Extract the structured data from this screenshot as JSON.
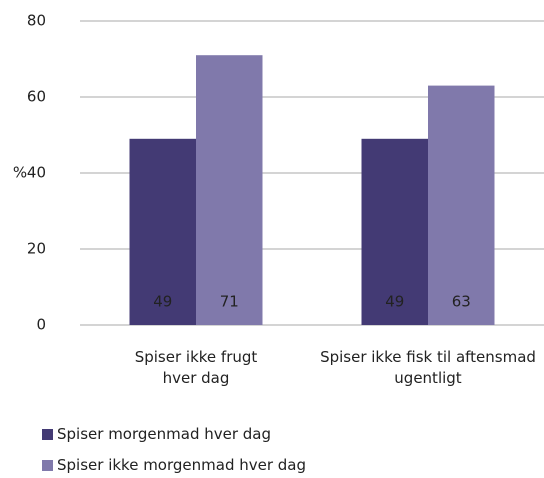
{
  "chart_data": {
    "type": "bar",
    "categories": [
      "Spiser ikke frugt hver dag",
      "Spiser ikke fisk til aftensmad ugentligt"
    ],
    "series": [
      {
        "name": "Spiser morgenmad hver dag",
        "color": "#433a74",
        "values": [
          49,
          49
        ]
      },
      {
        "name": "Spiser ikke morgenmad hver dag",
        "color": "#8079ab",
        "values": [
          71,
          63
        ]
      }
    ],
    "y_label": "%",
    "ylim": [
      0,
      80
    ],
    "yticks": [
      0,
      20,
      40,
      60,
      80
    ],
    "grid": true,
    "legend": "bottom"
  }
}
